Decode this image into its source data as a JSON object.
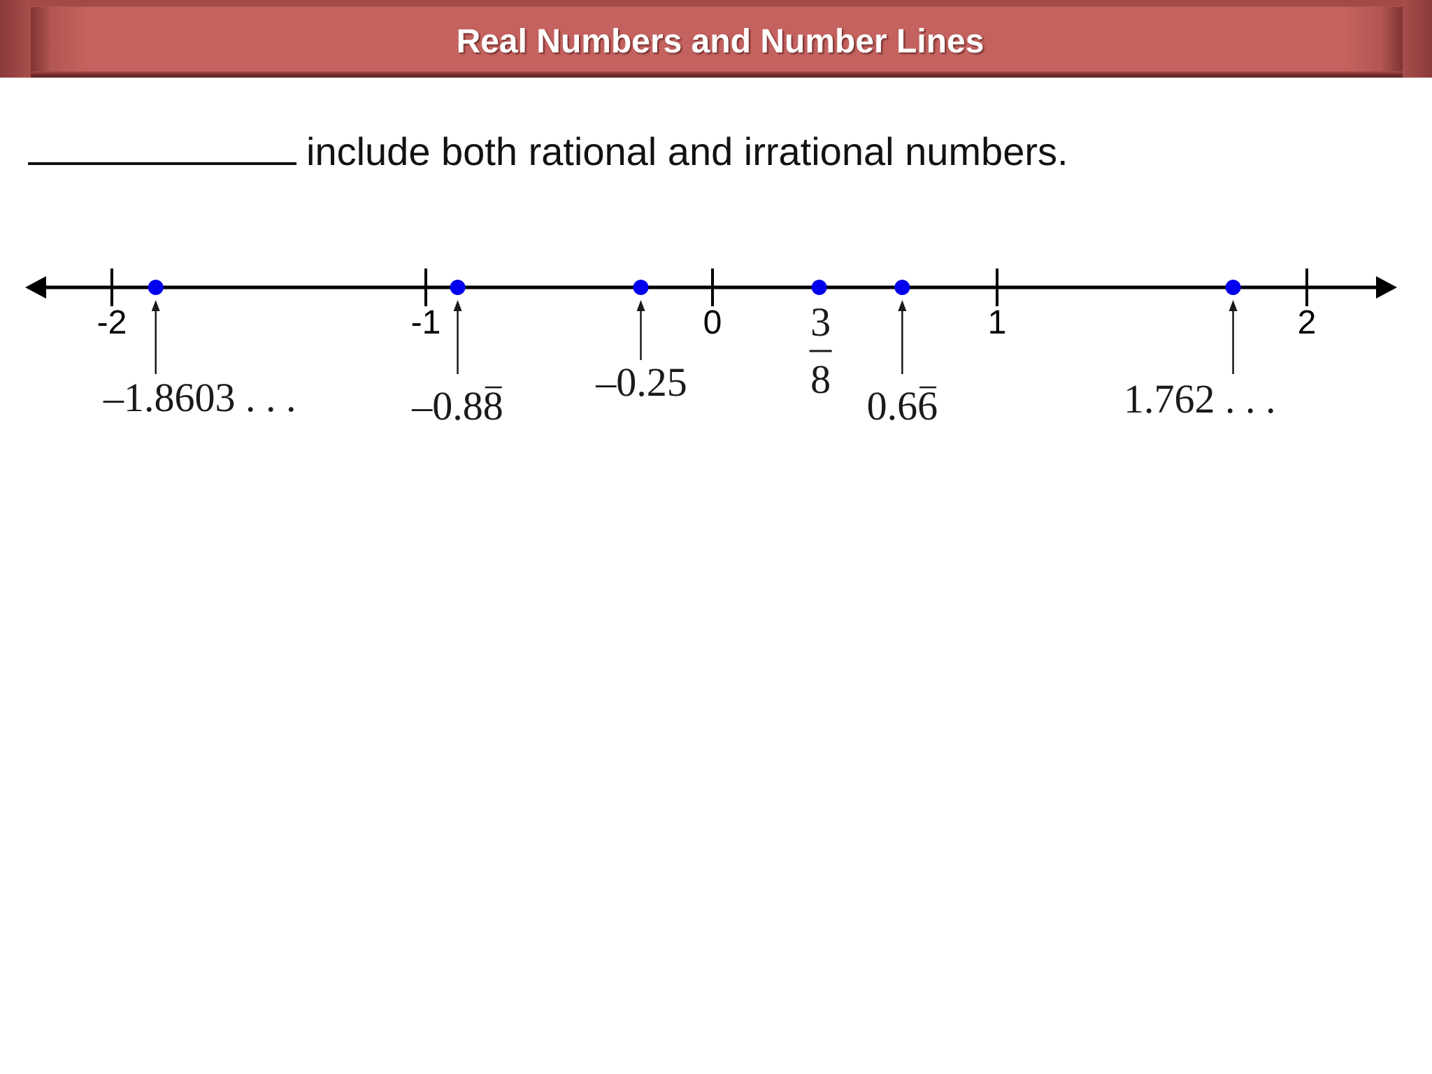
{
  "header": {
    "title": "Real Numbers and Number Lines"
  },
  "statement": {
    "text": "include both rational and irrational numbers."
  },
  "number_line": {
    "ticks": [
      {
        "value": -2,
        "label": "-2"
      },
      {
        "value": -1,
        "label": "-1"
      },
      {
        "value": 0,
        "label": "0"
      },
      {
        "value": 1,
        "label": "1"
      },
      {
        "value": 2,
        "label": "2"
      }
    ],
    "points": [
      {
        "value": -1.8603,
        "label": "–1.8603 . . ."
      },
      {
        "value": -0.8889,
        "label": "–0.8",
        "repeating": "8"
      },
      {
        "value": -0.25,
        "label": "–0.25"
      },
      {
        "value": 0.375,
        "numerator": "3",
        "denominator": "8"
      },
      {
        "value": 0.6667,
        "label": "0.6",
        "repeating": "6"
      },
      {
        "value": 1.762,
        "label": "1.762 . . ."
      }
    ],
    "point_color": "#0000ee",
    "line_color": "#000000"
  }
}
